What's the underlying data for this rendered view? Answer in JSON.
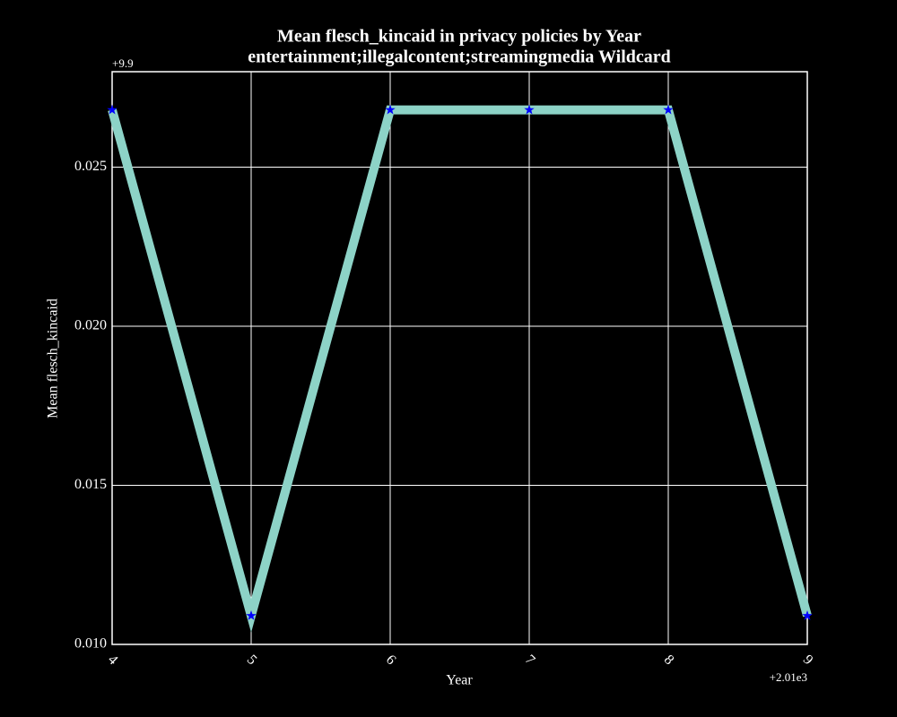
{
  "chart_data": {
    "type": "line",
    "title": "Mean flesch_kincaid in privacy policies by Year",
    "subtitle": "entertainment;illegalcontent;streamingmedia Wildcard",
    "x_label": "Year",
    "y_label": "Mean flesch_kincaid",
    "x_offset": "+2.01e3",
    "y_offset": "+9.9",
    "x": [
      4,
      5,
      6,
      7,
      8,
      9
    ],
    "series": [
      {
        "name": "Mean flesch_kincaid",
        "color": "#8dd3c7",
        "marker_color": "#0000ff",
        "values": [
          0.0268,
          0.0109,
          0.0268,
          0.0268,
          0.0268,
          0.0109
        ]
      }
    ],
    "xlim": [
      4,
      9
    ],
    "xticks": [
      4,
      5,
      6,
      7,
      8,
      9
    ],
    "ylim": [
      0.01,
      0.028
    ],
    "yticks": [
      {
        "value": 0.01,
        "label": "0.010"
      },
      0.015,
      {
        "value": 0.02,
        "label": "0.020"
      },
      0.025
    ],
    "grid": true
  }
}
